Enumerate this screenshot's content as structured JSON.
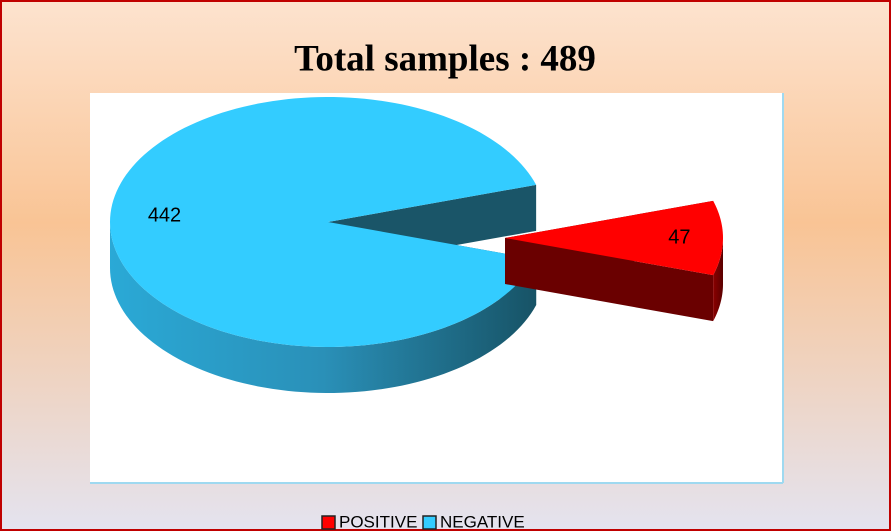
{
  "chart_data": {
    "type": "pie",
    "title": "Total samples : 489",
    "categories": [
      "POSITIVE",
      "NEGATIVE"
    ],
    "values": [
      47,
      442
    ],
    "colors": [
      "#ff0000",
      "#33ccff"
    ],
    "legend": "bottom"
  }
}
